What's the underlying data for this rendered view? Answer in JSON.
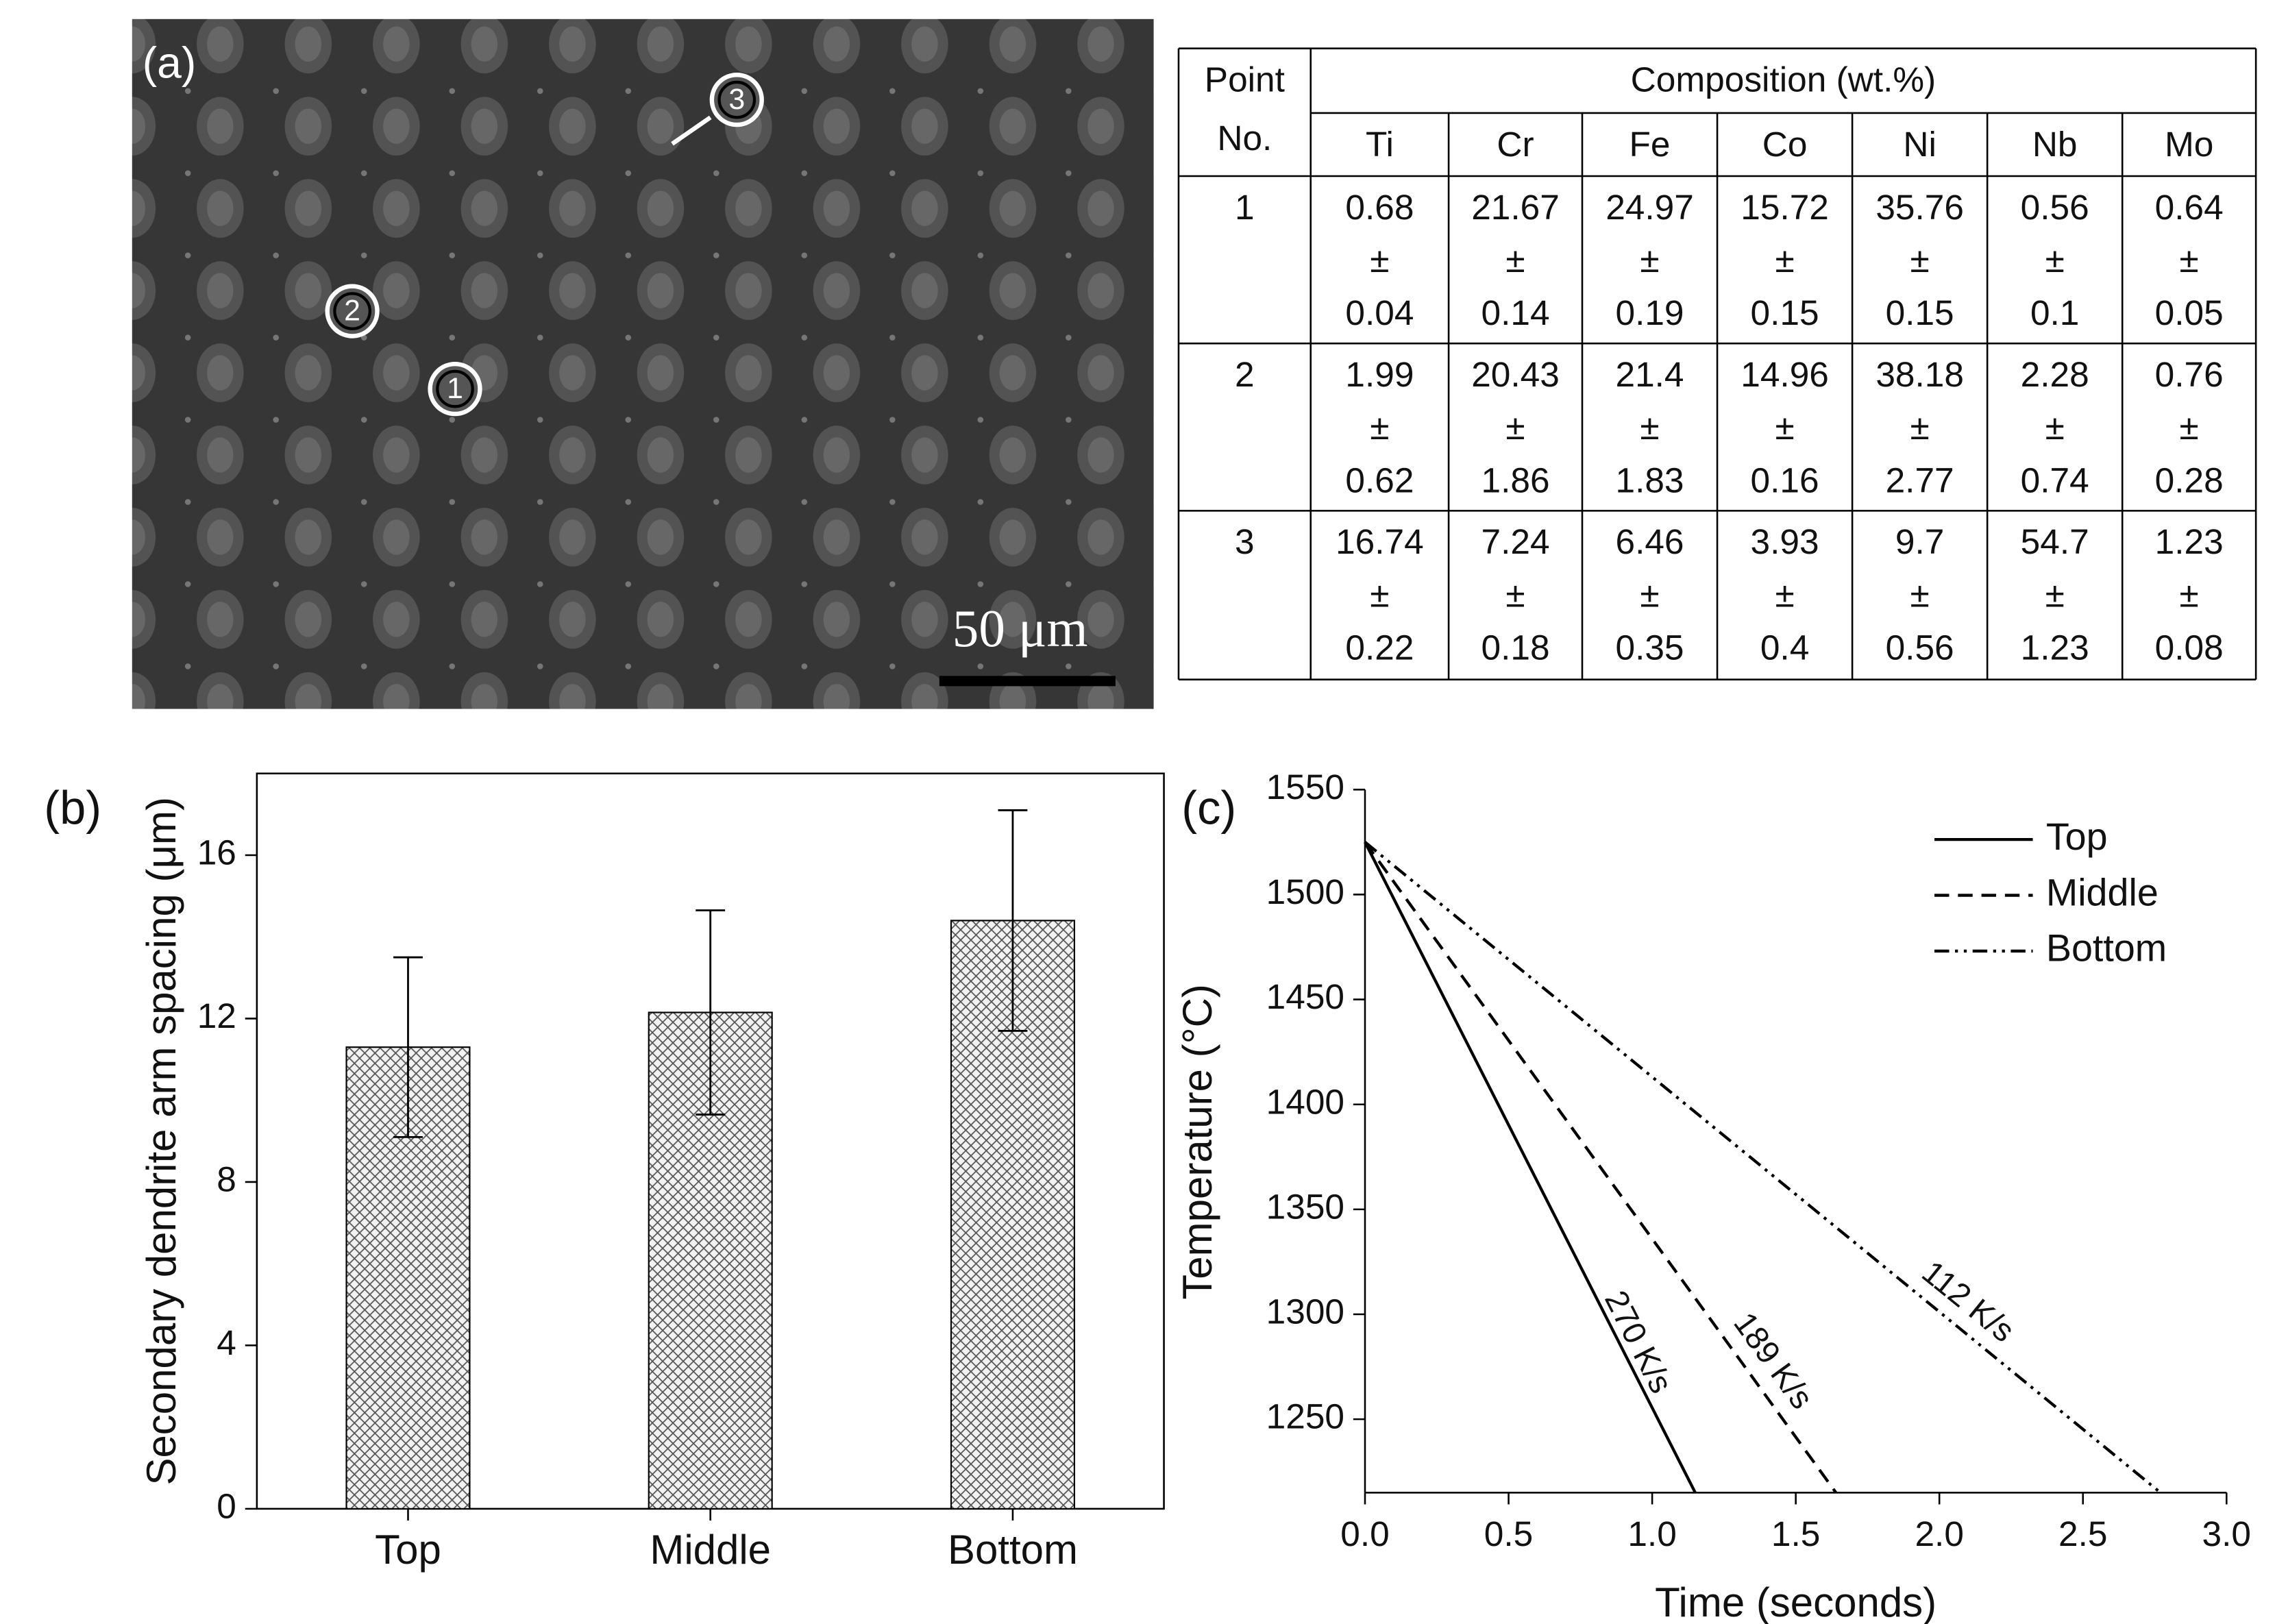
{
  "figure": {
    "micrograph": {
      "panel_label": "(a)",
      "scale_bar": "50 μm",
      "markers": [
        "1",
        "2",
        "3"
      ]
    },
    "table": {
      "point_header": [
        "Point",
        "No."
      ],
      "composition_header": "Composition (wt.%)",
      "columns": [
        "Ti",
        "Cr",
        "Fe",
        "Co",
        "Ni",
        "Nb",
        "Mo"
      ],
      "pm_sign": "±",
      "rows": [
        {
          "point": "1",
          "means": [
            "0.68",
            "21.67",
            "24.97",
            "15.72",
            "35.76",
            "0.56",
            "0.64"
          ],
          "sds": [
            "0.04",
            "0.14",
            "0.19",
            "0.15",
            "0.15",
            "0.1",
            "0.05"
          ]
        },
        {
          "point": "2",
          "means": [
            "1.99",
            "20.43",
            "21.4",
            "14.96",
            "38.18",
            "2.28",
            "0.76"
          ],
          "sds": [
            "0.62",
            "1.86",
            "1.83",
            "0.16",
            "2.77",
            "0.74",
            "0.28"
          ]
        },
        {
          "point": "3",
          "means": [
            "16.74",
            "7.24",
            "6.46",
            "3.93",
            "9.7",
            "54.7",
            "1.23"
          ],
          "sds": [
            "0.22",
            "0.18",
            "0.35",
            "0.4",
            "0.56",
            "1.23",
            "0.08"
          ]
        }
      ]
    }
  },
  "chart_data": [
    {
      "type": "bar",
      "panel_label": "(b)",
      "y_label": "Secondary dendrite arm spacing (μm)",
      "categories": [
        "Top",
        "Middle",
        "Bottom"
      ],
      "values": [
        11.3,
        12.15,
        14.4
      ],
      "errors": [
        2.2,
        2.5,
        2.7
      ],
      "fill": "crosshatch",
      "color": "#000000",
      "ylim": [
        0,
        18
      ],
      "yticks": [
        0,
        4,
        8,
        12,
        16
      ]
    },
    {
      "type": "line",
      "panel_label": "(c)",
      "x_label": "Time (seconds)",
      "y_label": "Temperature (°C)",
      "series": [
        {
          "name": "Top",
          "color": "#000000",
          "dash": "solid",
          "x": [
            0,
            1.15
          ],
          "values": [
            1525,
            1215
          ]
        },
        {
          "name": "Middle",
          "color": "#000000",
          "dash": "dashed",
          "x": [
            0,
            1.64
          ],
          "values": [
            1525,
            1215
          ]
        },
        {
          "name": "Bottom",
          "color": "#000000",
          "dash": "dash-dot-dot",
          "x": [
            0,
            2.77
          ],
          "values": [
            1525,
            1215
          ]
        }
      ],
      "annotations": [
        "270 K/s",
        "189 K/s",
        "112 K/s"
      ],
      "legend": "upper right",
      "xlim": [
        0,
        3
      ],
      "xticks": [
        {
          "value": 0,
          "label": "0.0"
        },
        0.5,
        {
          "value": 1,
          "label": "1.0"
        },
        1.5,
        {
          "value": 2,
          "label": "2.0"
        },
        2.5,
        {
          "value": 3,
          "label": "3.0"
        }
      ],
      "ylim": [
        1215,
        1550
      ],
      "yticks": [
        1250,
        1300,
        1350,
        1400,
        1450,
        1500,
        1550
      ]
    }
  ]
}
